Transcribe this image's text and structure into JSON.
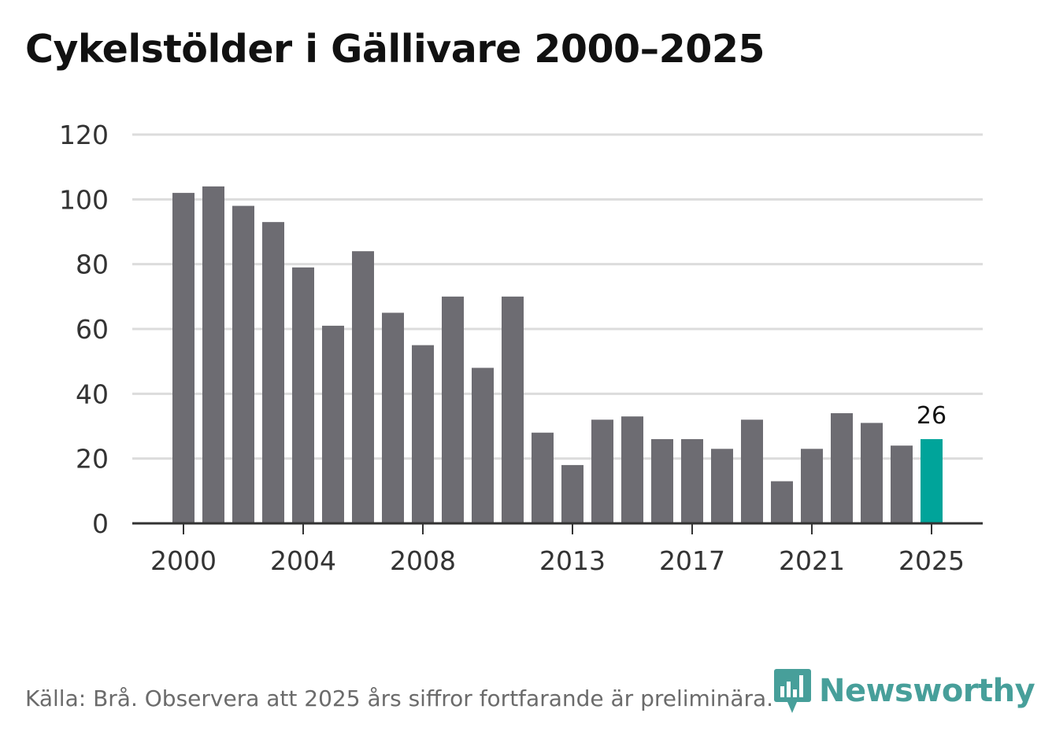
{
  "chart_data": {
    "type": "bar",
    "title": "Cykelstölder i Gällivare 2000–2025",
    "categories": [
      "2000",
      "2001",
      "2002",
      "2003",
      "2004",
      "2005",
      "2006",
      "2007",
      "2008",
      "2009",
      "2010",
      "2011",
      "2012",
      "2013",
      "2014",
      "2015",
      "2016",
      "2017",
      "2018",
      "2019",
      "2020",
      "2021",
      "2022",
      "2023",
      "2024",
      "2025"
    ],
    "values": [
      102,
      104,
      98,
      93,
      79,
      61,
      84,
      65,
      55,
      70,
      48,
      70,
      28,
      18,
      32,
      33,
      26,
      26,
      23,
      32,
      13,
      23,
      34,
      31,
      24,
      26
    ],
    "x_tick_labels": [
      "2000",
      "2004",
      "2008",
      "2013",
      "2017",
      "2021",
      "2025"
    ],
    "y_ticks": [
      0,
      20,
      40,
      60,
      80,
      100,
      120
    ],
    "ylim": [
      0,
      120
    ],
    "xlabel": "",
    "ylabel": "",
    "grid": true,
    "highlight_category": "2025",
    "highlight_label": "26",
    "colors": {
      "bar": "#6d6c72",
      "highlight": "#00a49a",
      "grid": "#dcdcdc",
      "axis": "#333333",
      "tick_text": "#333333"
    }
  },
  "footer": {
    "source": "Källa: Brå. Observera att 2025 års siffror fortfarande är preliminära."
  },
  "brand": {
    "name": "Newsworthy",
    "icon": "newsworthy-logo-icon",
    "color": "#3e9a95"
  }
}
